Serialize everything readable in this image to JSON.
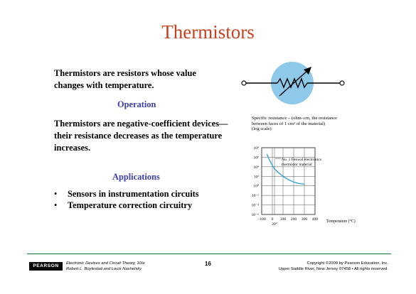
{
  "slide": {
    "title": "Thermistors",
    "intro": "Thermistors are resistors whose value changes with temperature.",
    "operation_heading": "Operation",
    "operation_text": "Thermistors are negative-coefficient devices—their resistance decreases as the temperature increases.",
    "applications_heading": "Applications",
    "applications": [
      "Sensors in instrumentation circuits",
      "Temperature correction circuitry"
    ]
  },
  "graph_caption": {
    "line1": "Specific resistance – (ohm–cm, the resistance",
    "line2": "between faces of 1 cm³ of the material)",
    "line3": "(log scale)"
  },
  "chart_data": {
    "type": "line",
    "title": "",
    "xlabel": "Temperature (°C)",
    "ylabel": "Specific resistance – (ohm–cm, the resistance between faces of 1 cm³ of the material) (log scale)",
    "x_ticks": [
      "−100",
      "0",
      "100",
      "200",
      "300",
      "400"
    ],
    "x_extra_label": "20°",
    "y_ticks": [
      "10⁸",
      "10⁶",
      "10⁴",
      "10²",
      "10⁰",
      "10⁻²",
      "10⁻⁴",
      "10⁻⁶"
    ],
    "y_log_exponents": [
      8,
      6,
      4,
      2,
      0,
      -2,
      -4,
      -6
    ],
    "xlim": [
      -100,
      400
    ],
    "ylim_log_exponent": [
      -6,
      8
    ],
    "grid": true,
    "annotation": "No. 1 Fenwal electronics thermistor material",
    "annotation_line1": "No. 1 Fenwal electronics",
    "annotation_line2": "thermistor material",
    "series": [
      {
        "x": [
          -50,
          -25,
          0,
          20,
          50,
          100,
          150,
          200,
          250,
          300
        ],
        "y_log_exponent": [
          6.6,
          5.3,
          4.3,
          3.6,
          2.9,
          2.0,
          1.3,
          0.8,
          0.5,
          0.35
        ]
      }
    ],
    "line_color": "#2a9fd6"
  },
  "footer": {
    "logo": "PEARSON",
    "book_line1": "Electronic Devices and Circuit Theory, 10/e",
    "book_line2": "Robert L. Boylestad and Louis Nashelsky",
    "page_number": "16",
    "copyright_line1": "Copyright ©2009 by Pearson Education, Inc.",
    "copyright_line2": "Upper Saddle River, New Jersey 07458 • All rights reserved."
  },
  "colors": {
    "title": "#c8401e",
    "heading": "#3a3fae",
    "footer_rule": "#0a7a2a",
    "symbol_circle": "#8ec9ea"
  }
}
